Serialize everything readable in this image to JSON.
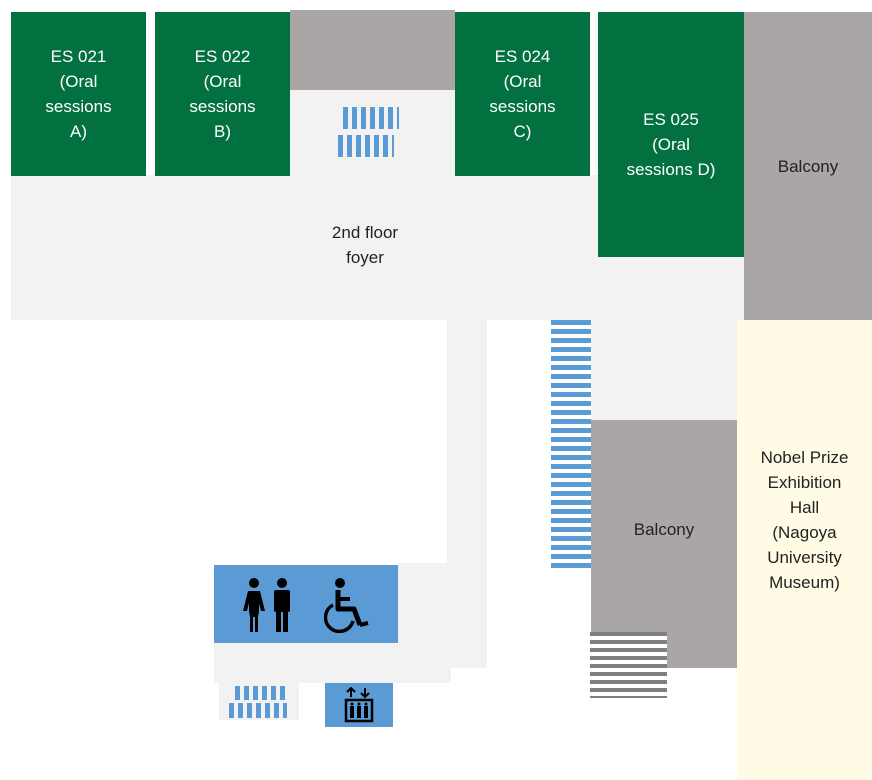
{
  "rooms": [
    {
      "id": "es021",
      "label": "ES 021\n(Oral\nsessions\nA)"
    },
    {
      "id": "es022",
      "label": "ES 022\n(Oral\nsessions\nB)"
    },
    {
      "id": "es024",
      "label": "ES 024\n(Oral\nsessions\nC)"
    },
    {
      "id": "es025",
      "label": "ES 025\n(Oral\nsessions D)"
    }
  ],
  "areas": {
    "foyer": "2nd floor\nfoyer",
    "balcony_top": "Balcony",
    "balcony_mid": "Balcony",
    "nobel_hall": "Nobel Prize\nExhibition\nHall\n(Nagoya\nUniversity\nMuseum)"
  },
  "icons": {
    "restroom": "restroom-icon",
    "accessible": "wheelchair-icon",
    "elevator": "elevator-icon",
    "stairs": "stairs-icon"
  },
  "colors": {
    "room": "#02703f",
    "balcony": "#aaa6a5",
    "floor": "#f2f2f2",
    "facility": "#5b9bd5",
    "exhibition": "#fffbe5"
  }
}
